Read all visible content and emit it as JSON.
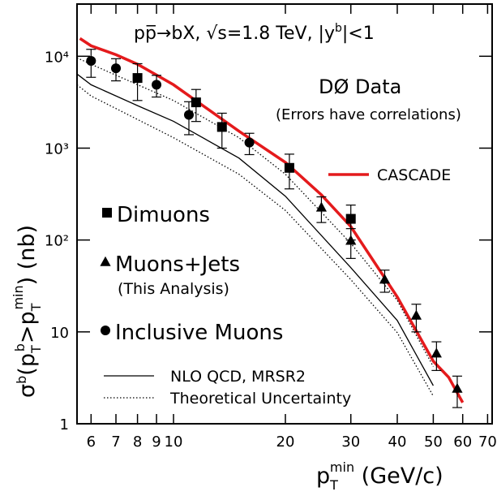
{
  "chart_data": {
    "type": "scatter",
    "title_parts": [
      "pp̅→bX,  √s=1.8 TeV,  |y",
      "b",
      "|<1"
    ],
    "xlabel_parts": [
      "p",
      "T",
      "min",
      " (GeV/c)"
    ],
    "ylabel_parts": [
      "σ",
      "b",
      "(p",
      "T",
      "b",
      ">p",
      "T",
      "min",
      ")  (nb)"
    ],
    "annotations": [
      "DØ Data",
      "(Errors have correlations)"
    ],
    "log_x": true,
    "log_y": true,
    "xlim": [
      5.5,
      72
    ],
    "ylim": [
      1,
      37000
    ],
    "xticks": [
      6,
      7,
      8,
      9,
      10,
      20,
      30,
      40,
      50,
      60,
      70
    ],
    "yticks": [
      1,
      10,
      {
        "value": 100,
        "label": "10²"
      },
      {
        "value": 1000,
        "label": "10³"
      },
      {
        "value": 10000,
        "label": "10⁴"
      }
    ],
    "series": [
      {
        "name": "Dimuons",
        "marker": "square",
        "color": "#000000",
        "x": [
          8,
          11.5,
          13.5,
          20.5,
          30
        ],
        "values": [
          5800,
          3150,
          1700,
          610,
          170
        ],
        "errors": [
          2500,
          1200,
          700,
          250,
          70
        ]
      },
      {
        "name": "Muons+Jets",
        "note": "(This Analysis)",
        "marker": "triangle",
        "color": "#000000",
        "x": [
          25,
          30,
          37,
          45,
          51,
          58
        ],
        "values": [
          225,
          98,
          37,
          15,
          5.8,
          2.4
        ],
        "errors": [
          70,
          35,
          10,
          5,
          2,
          0.9
        ]
      },
      {
        "name": "Inclusive Muons",
        "marker": "circle",
        "color": "#000000",
        "x": [
          6,
          7,
          9,
          11,
          16
        ],
        "values": [
          8900,
          7400,
          4900,
          2300,
          1150
        ],
        "errors": [
          3000,
          2000,
          1300,
          900,
          300
        ]
      }
    ],
    "curves": [
      {
        "name": "CASCADE",
        "color": "#e41a1c",
        "style": "solid",
        "x": [
          5.6,
          6,
          7,
          8,
          10,
          15,
          20,
          25,
          30,
          40,
          50,
          55,
          60
        ],
        "values": [
          15600,
          13000,
          10400,
          8200,
          4900,
          1530,
          700,
          310,
          140,
          24,
          4.8,
          3.2,
          1.7
        ]
      },
      {
        "name": "NLO QCD, MRSR2",
        "color": "#000000",
        "style": "solid",
        "x": [
          5.5,
          6,
          8,
          10,
          15,
          20,
          30,
          40,
          50
        ],
        "values": [
          6400,
          4900,
          2900,
          1960,
          780,
          300,
          50,
          13.3,
          2.6
        ]
      },
      {
        "name": "Theoretical Uncertainty",
        "color": "#000000",
        "style": "dotted",
        "x": [
          5.5,
          6,
          10,
          15,
          20,
          30,
          40,
          50
        ],
        "upper": [
          9600,
          8200,
          3300,
          1300,
          520,
          92,
          22,
          4.2
        ],
        "lower": [
          4900,
          3700,
          1300,
          520,
          210,
          37,
          9.8,
          2.0
        ]
      }
    ]
  }
}
